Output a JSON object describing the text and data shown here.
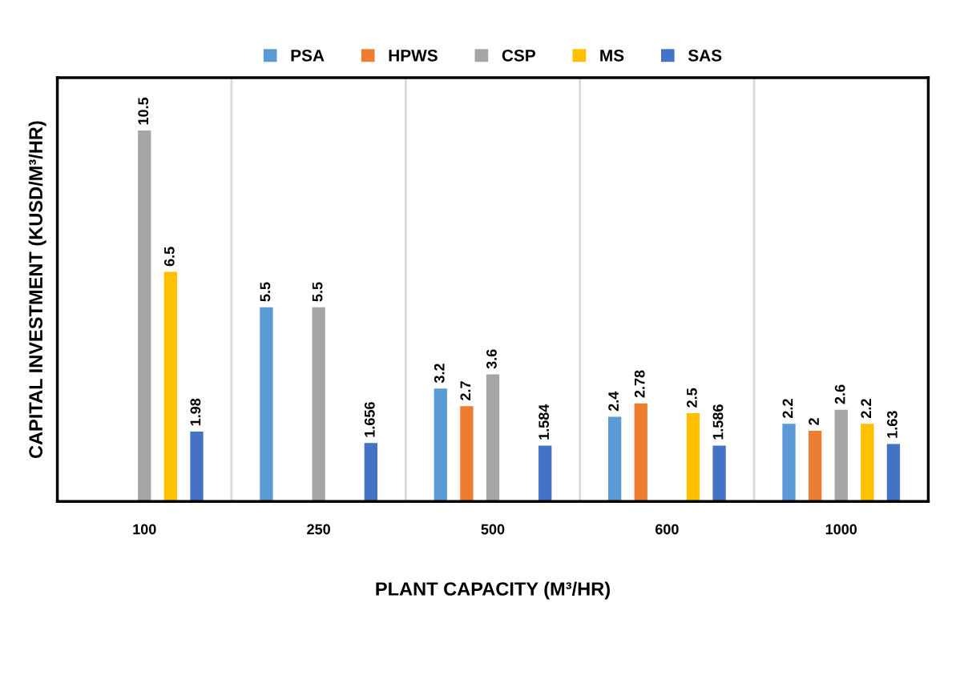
{
  "chart_data": {
    "type": "bar",
    "xlabel": "PLANT CAPACITY (M³/HR)",
    "ylabel": "CAPITAL INVESTMENT (KUSD/M³/HR)",
    "categories": [
      "100",
      "250",
      "500",
      "600",
      "1000"
    ],
    "series": [
      {
        "name": "PSA",
        "color": "#5b9bd5",
        "values": [
          null,
          5.5,
          3.2,
          2.4,
          2.2
        ]
      },
      {
        "name": "HPWS",
        "color": "#ed7d31",
        "values": [
          null,
          null,
          2.7,
          2.78,
          2
        ]
      },
      {
        "name": "CSP",
        "color": "#a5a5a5",
        "values": [
          10.5,
          5.5,
          3.6,
          null,
          2.6
        ]
      },
      {
        "name": "MS",
        "color": "#ffc000",
        "values": [
          6.5,
          null,
          null,
          2.5,
          2.2
        ]
      },
      {
        "name": "SAS",
        "color": "#4472c4",
        "values": [
          1.98,
          1.656,
          1.584,
          1.586,
          1.63
        ]
      }
    ],
    "ylim": [
      0,
      12
    ],
    "tick_labels": "x",
    "grid": "x",
    "legend": "top",
    "data_labels": true
  }
}
